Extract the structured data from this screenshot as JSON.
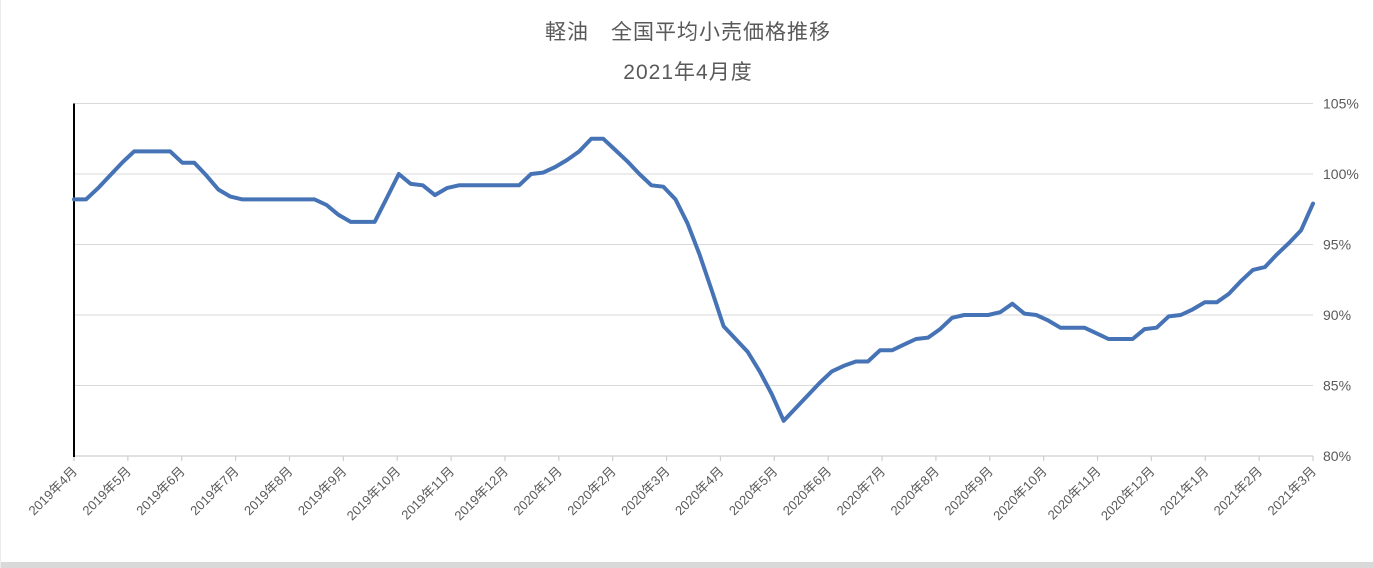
{
  "title": "軽油　全国平均小売価格推移",
  "subtitle": "2021年4月度",
  "colors": {
    "series_line": "#4673B5",
    "gridline": "#D9D9D9",
    "axis_line": "#D0CECE",
    "y_axis_line": "#000000",
    "text": "#595959"
  },
  "chart_data": {
    "type": "line",
    "title": "軽油　全国平均小売価格推移",
    "subtitle": "2021年4月度",
    "legend": "none",
    "grid": true,
    "ylim": [
      80,
      105
    ],
    "y_step": 5,
    "y_tick_labels": [
      "105%",
      "100%",
      "95%",
      "90%",
      "85%",
      "80%"
    ],
    "x_tick_labels": [
      "2019年4月",
      "2019年5月",
      "2019年6月",
      "2019年7月",
      "2019年8月",
      "2019年9月",
      "2019年10月",
      "2019年11月",
      "2019年12月",
      "2020年1月",
      "2020年2月",
      "2020年3月",
      "2020年4月",
      "2020年5月",
      "2020年6月",
      "2020年7月",
      "2020年8月",
      "2020年9月",
      "2020年10月",
      "2020年11月",
      "2020年12月",
      "2021年1月",
      "2021年2月",
      "2021年3月"
    ],
    "x_label_rotation": -45,
    "sampling": "weekly points, evenly spaced from 2019年4月 to 2021年3月",
    "series": [
      {
        "values": [
          98.2,
          98.2,
          99.0,
          99.9,
          100.8,
          101.6,
          101.6,
          101.6,
          101.6,
          100.8,
          100.8,
          99.9,
          98.9,
          98.4,
          98.2,
          98.2,
          98.2,
          98.2,
          98.2,
          98.2,
          98.2,
          97.8,
          97.1,
          96.6,
          96.6,
          96.6,
          98.3,
          100.0,
          99.3,
          99.2,
          98.5,
          99.0,
          99.2,
          99.2,
          99.2,
          99.2,
          99.2,
          99.2,
          100.0,
          100.1,
          100.5,
          101.0,
          101.6,
          102.5,
          102.5,
          101.7,
          100.9,
          100.0,
          99.2,
          99.1,
          98.2,
          96.5,
          94.3,
          91.8,
          89.2,
          88.3,
          87.4,
          86.0,
          84.4,
          82.5,
          83.4,
          84.3,
          85.2,
          86.0,
          86.4,
          86.7,
          86.7,
          87.5,
          87.5,
          87.9,
          88.3,
          88.4,
          89.0,
          89.8,
          90.0,
          90.0,
          90.0,
          90.2,
          90.8,
          90.1,
          90.0,
          89.6,
          89.1,
          89.1,
          89.1,
          88.7,
          88.3,
          88.3,
          88.3,
          89.0,
          89.1,
          89.9,
          90.0,
          90.4,
          90.9,
          90.9,
          91.5,
          92.4,
          93.2,
          93.4,
          94.3,
          95.1,
          96.0,
          97.9
        ]
      }
    ]
  }
}
